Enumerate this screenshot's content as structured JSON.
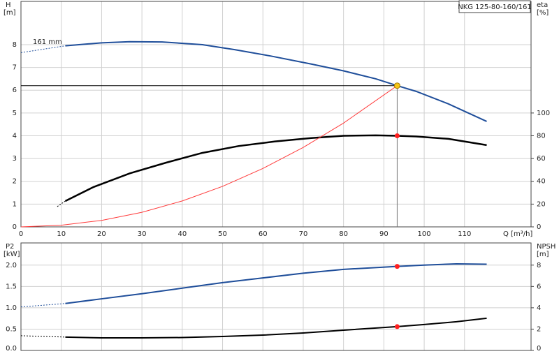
{
  "chart_data": [
    {
      "type": "line",
      "title": "NKG 125-80-160/161",
      "annotation": "161 mm",
      "x_label": "Q [m³/h]",
      "y_label": "H",
      "y_unit": "[m]",
      "y2_label": "eta",
      "y2_unit": "[%]",
      "xlim": [
        0,
        126.5
      ],
      "xticks": [
        0,
        10,
        20,
        30,
        40,
        50,
        60,
        70,
        80,
        90,
        100,
        110
      ],
      "ylim": [
        0,
        9.9
      ],
      "yticks": [
        0,
        1,
        2,
        3,
        4,
        5,
        6,
        7,
        8
      ],
      "y2lim": [
        0,
        198
      ],
      "y2ticks": [
        0,
        20,
        40,
        60,
        80,
        100
      ],
      "grid": true,
      "show_x_labels": true,
      "series": [
        {
          "color": "#1f4e9a",
          "width": 1,
          "dash": true,
          "x": [
            0,
            11
          ],
          "values": [
            7.65,
            7.95
          ]
        },
        {
          "color": "#1f4e9a",
          "width": 2,
          "dash": false,
          "x": [
            11,
            20,
            27,
            35,
            45,
            53,
            62,
            72,
            80,
            88,
            93.3,
            98,
            106,
            115.5
          ],
          "values": [
            7.95,
            8.08,
            8.13,
            8.12,
            8.0,
            7.78,
            7.5,
            7.15,
            6.85,
            6.5,
            6.2,
            5.95,
            5.4,
            4.63
          ]
        },
        {
          "color": "#000000",
          "width": 1,
          "dash": true,
          "axis": "y2",
          "x": [
            9,
            11
          ],
          "values": [
            17.8,
            22.7
          ]
        },
        {
          "color": "#000000",
          "width": 2.5,
          "dash": false,
          "axis": "y2",
          "x": [
            11,
            18,
            27,
            36,
            45,
            54,
            63,
            72,
            80,
            88,
            93.3,
            98,
            106,
            115.5
          ],
          "values": [
            22.7,
            35,
            47,
            56.4,
            65,
            71,
            75,
            78,
            80,
            80.4,
            80,
            79.4,
            77.3,
            71.8
          ]
        },
        {
          "color": "#ff3b3b",
          "width": 1,
          "dash": false,
          "x": [
            0,
            10,
            20,
            30,
            40,
            50,
            60,
            70,
            80,
            93.3
          ],
          "values": [
            0,
            0.071,
            0.285,
            0.641,
            1.139,
            1.78,
            2.564,
            3.49,
            4.558,
            6.2
          ]
        }
      ],
      "points": [
        {
          "x": 93.3,
          "y": 80,
          "axis": "y2",
          "color": "#ff2020"
        }
      ],
      "operating_point": {
        "x": 93.3,
        "y": 6.2,
        "color": "#f5c518"
      }
    },
    {
      "type": "line",
      "y_label": "P2",
      "y_unit": "[kW]",
      "y2_label": "NPSH",
      "y2_unit": "[m]",
      "xlim": [
        0,
        126.5
      ],
      "xticks": [
        0,
        10,
        20,
        30,
        40,
        50,
        60,
        70,
        80,
        90,
        100,
        110
      ],
      "ylim": [
        0,
        2.52
      ],
      "yticks": [
        {
          "value": 0,
          "label": "0.0"
        },
        0.5,
        {
          "value": 1,
          "label": "1.0"
        },
        1.5,
        {
          "value": 2,
          "label": "2.0"
        }
      ],
      "y2lim": [
        0,
        10.08
      ],
      "y2ticks": [
        0,
        2,
        4,
        6,
        8
      ],
      "grid": true,
      "show_x_labels": false,
      "series": [
        {
          "color": "#1f4e9a",
          "width": 1,
          "dash": true,
          "x": [
            0,
            11
          ],
          "values": [
            1.02,
            1.1
          ]
        },
        {
          "color": "#1f4e9a",
          "width": 2,
          "dash": false,
          "x": [
            11,
            20,
            30,
            40,
            50,
            60,
            70,
            80,
            93.3,
            100,
            108,
            115.5
          ],
          "values": [
            1.1,
            1.21,
            1.33,
            1.46,
            1.59,
            1.7,
            1.81,
            1.9,
            1.97,
            2.0,
            2.03,
            2.02
          ]
        },
        {
          "color": "#000000",
          "width": 1,
          "dash": true,
          "axis": "y2",
          "x": [
            0,
            11
          ],
          "values": [
            1.38,
            1.25
          ]
        },
        {
          "color": "#000000",
          "width": 2,
          "dash": false,
          "axis": "y2",
          "x": [
            11,
            20,
            30,
            40,
            50,
            60,
            70,
            80,
            93.3,
            100,
            108,
            115.5
          ],
          "values": [
            1.25,
            1.18,
            1.18,
            1.21,
            1.31,
            1.44,
            1.64,
            1.9,
            2.23,
            2.43,
            2.69,
            3.02
          ]
        }
      ],
      "points": [
        {
          "x": 93.3,
          "y": 1.97,
          "color": "#ff2020"
        },
        {
          "x": 93.3,
          "y": 2.23,
          "axis": "y2",
          "color": "#ff2020"
        }
      ]
    }
  ]
}
